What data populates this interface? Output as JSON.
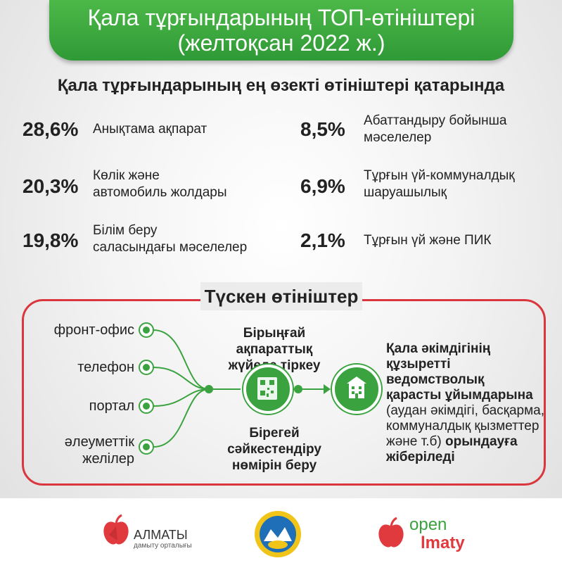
{
  "header": {
    "title_line1": "Қала тұрғындарының ТОП-өтініштері",
    "title_line2": "(желтоқсан 2022 ж.)"
  },
  "subtitle": "Қала тұрғындарының ең өзекті өтініштері қатарында",
  "stats": [
    {
      "percent": "28,6%",
      "label_line1": "Анықтама ақпарат",
      "label_line2": ""
    },
    {
      "percent": "20,3%",
      "label_line1": "Көлік және",
      "label_line2": "автомобиль жолдары"
    },
    {
      "percent": "19,8%",
      "label_line1": "Білім беру",
      "label_line2": "саласындағы мәселелер"
    },
    {
      "percent": "8,5%",
      "label_line1": "Абаттандыру бойынша",
      "label_line2": "мәселелер"
    },
    {
      "percent": "6,9%",
      "label_line1": "Тұрғын үй-коммуналдық",
      "label_line2": "шаруашылық"
    },
    {
      "percent": "2,1%",
      "label_line1": "Тұрғын үй және ПИК",
      "label_line2": ""
    }
  ],
  "flow": {
    "section_title": "Түскен өтініштер",
    "channels": [
      {
        "line1": "фронт-офис",
        "line2": ""
      },
      {
        "line1": "телефон",
        "line2": ""
      },
      {
        "line1": "портал",
        "line2": ""
      },
      {
        "line1": "әлеуметтік",
        "line2": "желілер"
      }
    ],
    "register_caption_line1": "Бірыңғай ақпараттық",
    "register_caption_line2": "жүйеде тіркеу",
    "id_caption_line1": "Бірегей сәйкестендіру",
    "id_caption_line2": "нөмірін беру",
    "destination": {
      "bold_line1": "Қала әкімдігінің",
      "bold_line2": "құзыретті ведомстволық",
      "bold_line3": "қарасты ұйымдарына",
      "normal_line1": "(аудан әкімдігі, басқарма,",
      "normal_line2": "коммуналдық қызметтер",
      "normal_line3_prefix": "және т.б)",
      "bold_line4_suffix": "орындауға",
      "bold_line5": "жіберіледі"
    }
  },
  "footer": {
    "logo_left_name": "АЛМАТЫ",
    "logo_left_sub": "дамыту орталығы",
    "logo_right_top": "open",
    "logo_right_bottom": "lmaty"
  },
  "colors": {
    "green": "#3aa33f",
    "banner_green": "#2f9a36",
    "red": "#d9373d"
  }
}
